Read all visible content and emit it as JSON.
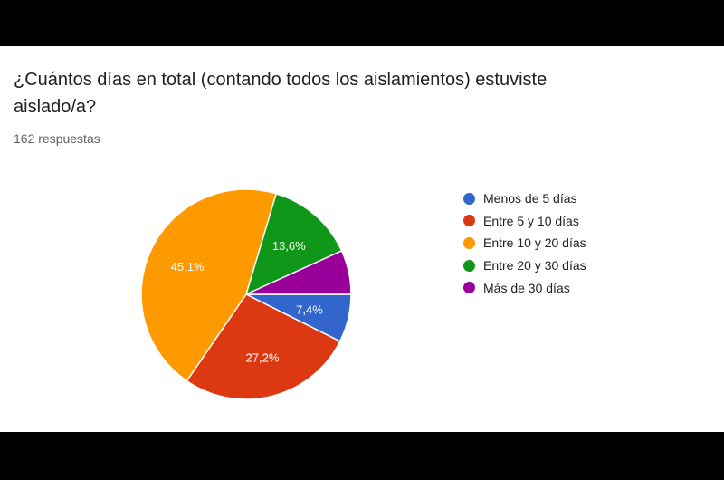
{
  "question": {
    "title": "¿Cuántos días en total (contando todos los aislamientos) estuviste aislado/a?",
    "responses": "162 respuestas"
  },
  "chart_data": {
    "type": "pie",
    "title": "",
    "categories": [
      "Menos de 5 días",
      "Entre 5 y 10 días",
      "Entre 10 y 20 días",
      "Entre 20 y 30 días",
      "Más de 30 días"
    ],
    "values": [
      7.4,
      27.2,
      45.1,
      13.6,
      6.8
    ],
    "labels": [
      "7,4%",
      "27,2%",
      "45,1%",
      "13,6%",
      ""
    ],
    "colors": [
      "#3366cc",
      "#dc3912",
      "#ff9900",
      "#109618",
      "#990099"
    ],
    "legend_position": "right"
  }
}
